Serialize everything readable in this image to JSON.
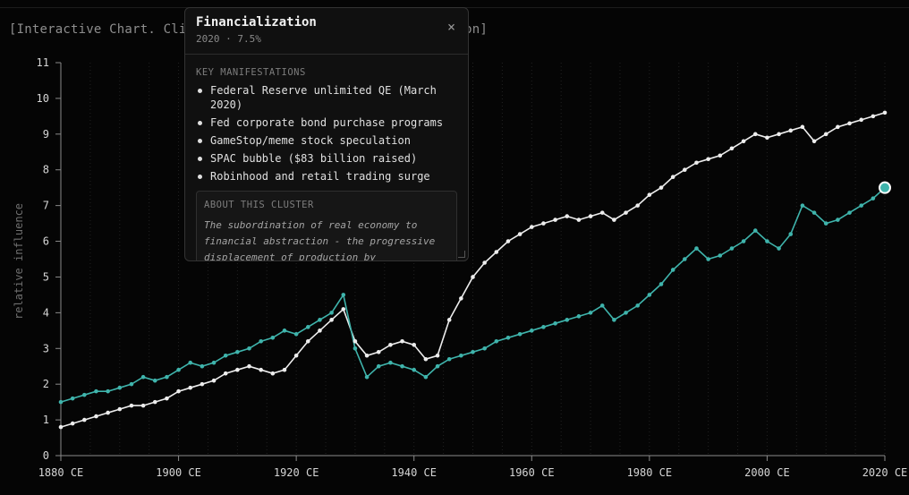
{
  "hint": "[Interactive Chart. Click a data point to see the explanation]",
  "panel": {
    "title": "Financialization",
    "subtitle": "2020 · 7.5%",
    "close_glyph": "×",
    "section_label": "KEY MANIFESTATIONS",
    "manifestations": [
      "Federal Reserve unlimited QE (March 2020)",
      "Fed corporate bond purchase programs",
      "GameStop/meme stock speculation",
      "SPAC bubble ($83 billion raised)",
      "Robinhood and retail trading surge"
    ],
    "about_label": "ABOUT THIS CLUSTER",
    "about_text": "The subordination of real economy to financial abstraction - the progressive displacement of production by"
  },
  "chart_data": {
    "type": "line",
    "title": "",
    "xlabel": "",
    "ylabel": "relative influence",
    "xlim": [
      1880,
      2020
    ],
    "ylim": [
      0,
      11
    ],
    "xticks": [
      1880,
      1900,
      1920,
      1940,
      1960,
      1980,
      2000,
      2020
    ],
    "xtick_labels": [
      "1880 CE",
      "1900 CE",
      "1920 CE",
      "1940 CE",
      "1960 CE",
      "1980 CE",
      "2000 CE",
      "2020 CE"
    ],
    "yticks": [
      0,
      1,
      2,
      3,
      4,
      5,
      6,
      7,
      8,
      9,
      10,
      11
    ],
    "ytick_labels": [
      "0",
      "1",
      "2",
      "3",
      "4",
      "5",
      "6",
      "7",
      "8",
      "9",
      "10",
      "11"
    ],
    "grid": "vertical dotted",
    "selected": {
      "series": 1,
      "x": 2020,
      "y": 7.5
    },
    "series": [
      {
        "color": "#ededed",
        "x": [
          1880,
          1882,
          1884,
          1886,
          1888,
          1890,
          1892,
          1894,
          1896,
          1898,
          1900,
          1902,
          1904,
          1906,
          1908,
          1910,
          1912,
          1914,
          1916,
          1918,
          1920,
          1922,
          1924,
          1926,
          1928,
          1930,
          1932,
          1934,
          1936,
          1938,
          1940,
          1942,
          1944,
          1946,
          1948,
          1950,
          1952,
          1954,
          1956,
          1958,
          1960,
          1962,
          1964,
          1966,
          1968,
          1970,
          1972,
          1974,
          1976,
          1978,
          1980,
          1982,
          1984,
          1986,
          1988,
          1990,
          1992,
          1994,
          1996,
          1998,
          2000,
          2002,
          2004,
          2006,
          2008,
          2010,
          2012,
          2014,
          2016,
          2018,
          2020
        ],
        "y": [
          0.8,
          0.9,
          1.0,
          1.1,
          1.2,
          1.3,
          1.4,
          1.4,
          1.5,
          1.6,
          1.8,
          1.9,
          2.0,
          2.1,
          2.3,
          2.4,
          2.5,
          2.4,
          2.3,
          2.4,
          2.8,
          3.2,
          3.5,
          3.8,
          4.1,
          3.2,
          2.8,
          2.9,
          3.1,
          3.2,
          3.1,
          2.7,
          2.8,
          3.8,
          4.4,
          5.0,
          5.4,
          5.7,
          6.0,
          6.2,
          6.4,
          6.5,
          6.6,
          6.7,
          6.6,
          6.7,
          6.8,
          6.6,
          6.8,
          7.0,
          7.3,
          7.5,
          7.8,
          8.0,
          8.2,
          8.3,
          8.4,
          8.6,
          8.8,
          9.0,
          8.9,
          9.0,
          9.1,
          9.2,
          8.8,
          9.0,
          9.2,
          9.3,
          9.4,
          9.5,
          9.6
        ]
      },
      {
        "color": "#3fb4ac",
        "x": [
          1880,
          1882,
          1884,
          1886,
          1888,
          1890,
          1892,
          1894,
          1896,
          1898,
          1900,
          1902,
          1904,
          1906,
          1908,
          1910,
          1912,
          1914,
          1916,
          1918,
          1920,
          1922,
          1924,
          1926,
          1928,
          1930,
          1932,
          1934,
          1936,
          1938,
          1940,
          1942,
          1944,
          1946,
          1948,
          1950,
          1952,
          1954,
          1956,
          1958,
          1960,
          1962,
          1964,
          1966,
          1968,
          1970,
          1972,
          1974,
          1976,
          1978,
          1980,
          1982,
          1984,
          1986,
          1988,
          1990,
          1992,
          1994,
          1996,
          1998,
          2000,
          2002,
          2004,
          2006,
          2008,
          2010,
          2012,
          2014,
          2016,
          2018,
          2020
        ],
        "y": [
          1.5,
          1.6,
          1.7,
          1.8,
          1.8,
          1.9,
          2.0,
          2.2,
          2.1,
          2.2,
          2.4,
          2.6,
          2.5,
          2.6,
          2.8,
          2.9,
          3.0,
          3.2,
          3.3,
          3.5,
          3.4,
          3.6,
          3.8,
          4.0,
          4.5,
          3.0,
          2.2,
          2.5,
          2.6,
          2.5,
          2.4,
          2.2,
          2.5,
          2.7,
          2.8,
          2.9,
          3.0,
          3.2,
          3.3,
          3.4,
          3.5,
          3.6,
          3.7,
          3.8,
          3.9,
          4.0,
          4.2,
          3.8,
          4.0,
          4.2,
          4.5,
          4.8,
          5.2,
          5.5,
          5.8,
          5.5,
          5.6,
          5.8,
          6.0,
          6.3,
          6.0,
          5.8,
          6.2,
          7.0,
          6.8,
          6.5,
          6.6,
          6.8,
          7.0,
          7.2,
          7.5
        ]
      }
    ]
  }
}
